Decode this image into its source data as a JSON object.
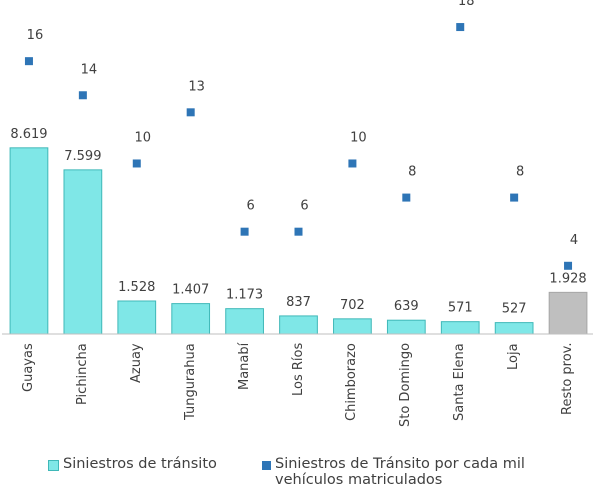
{
  "chart_data": {
    "type": "bar",
    "categories": [
      "Guayas",
      "Pichincha",
      "Azuay",
      "Tungurahua",
      "Manabí",
      "Los Ríos",
      "Chimborazo",
      "Sto Domingo",
      "Santa Elena",
      "Loja",
      "Resto prov."
    ],
    "series": [
      {
        "name": "Siniestros de tránsito",
        "type": "bar",
        "color": "#7fe7e7",
        "colors": [
          "#7fe7e7",
          "#7fe7e7",
          "#7fe7e7",
          "#7fe7e7",
          "#7fe7e7",
          "#7fe7e7",
          "#7fe7e7",
          "#7fe7e7",
          "#7fe7e7",
          "#7fe7e7",
          "#bfbfbf"
        ],
        "values": [
          8619,
          7599,
          1528,
          1407,
          1173,
          837,
          702,
          639,
          571,
          527,
          1928
        ],
        "value_labels": [
          "8.619",
          "7.599",
          "1.528",
          "1.407",
          "1.173",
          "837",
          "702",
          "639",
          "571",
          "527",
          "1.928"
        ]
      },
      {
        "name": "Siniestros de Tránsito por cada mil vehículos matriculados",
        "type": "scatter",
        "axis": "y2",
        "color": "#2e75b6",
        "values": [
          16,
          14,
          10,
          13,
          6,
          6,
          10,
          8,
          18,
          8,
          4
        ]
      }
    ],
    "ylim": [
      0,
      15000
    ],
    "y2lim": [
      0,
      19
    ]
  }
}
